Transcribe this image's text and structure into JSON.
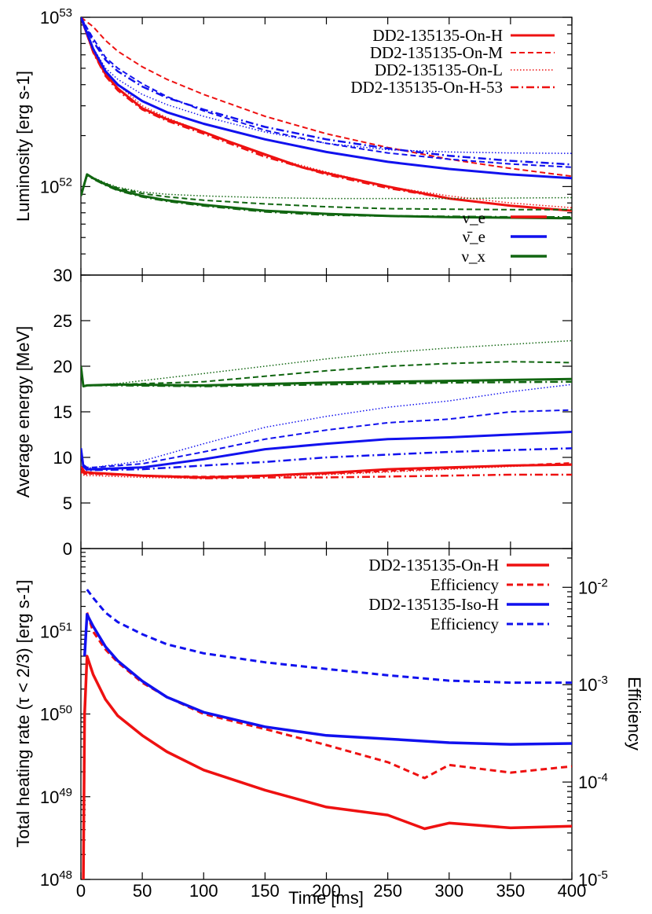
{
  "chart_data": [
    {
      "type": "line",
      "panel": "luminosity",
      "ylabel": "Luminosity [erg s-1]",
      "yscale": "log",
      "ylim": [
        3e+51,
        1e+53
      ],
      "xlim": [
        0,
        400
      ],
      "ytick_labels": [
        "10^52",
        "10^53"
      ],
      "legend_models": [
        "DD2-135135-On-H",
        "DD2-135135-On-M",
        "DD2-135135-On-L",
        "DD2-135135-On-H-53"
      ],
      "legend_species": [
        "ν_e",
        "ν̄_e",
        "ν_x"
      ],
      "series": [
        {
          "name": "DD2-135135-On-H ν_e",
          "color": "#ee1111",
          "style": "solid",
          "x": [
            0,
            10,
            20,
            30,
            50,
            70,
            100,
            120,
            150,
            180,
            200,
            250,
            300,
            350,
            400
          ],
          "values": [
            1e+53,
            6.3e+52,
            4.6e+52,
            3.8e+52,
            2.9e+52,
            2.5e+52,
            2.1e+52,
            1.85e+52,
            1.55e+52,
            1.3e+52,
            1.2e+52,
            1e+52,
            8.5e+51,
            7.7e+51,
            7.2e+51
          ]
        },
        {
          "name": "DD2-135135-On-M ν_e",
          "color": "#ee1111",
          "style": "dashed",
          "x": [
            0,
            10,
            20,
            30,
            50,
            70,
            100,
            150,
            200,
            250,
            300,
            350,
            400
          ],
          "values": [
            1e+53,
            8.8e+52,
            7.3e+52,
            6.3e+52,
            5.1e+52,
            4.3e+52,
            3.5e+52,
            2.6e+52,
            2.05e+52,
            1.7e+52,
            1.45e+52,
            1.28e+52,
            1.15e+52
          ]
        },
        {
          "name": "DD2-135135-On-L ν_e",
          "color": "#ee1111",
          "style": "dotted",
          "x": [
            0,
            10,
            20,
            30,
            50,
            70,
            100,
            150,
            200,
            250,
            300,
            350,
            400
          ],
          "values": [
            1e+53,
            6.4e+52,
            4.8e+52,
            4e+52,
            3e+52,
            2.55e+52,
            2.1e+52,
            1.52e+52,
            1.22e+52,
            1e+52,
            8.8e+51,
            8e+51,
            7.5e+51
          ]
        },
        {
          "name": "DD2-135135-On-H-53 ν_e",
          "color": "#ee1111",
          "style": "dashdot",
          "x": [
            0,
            10,
            20,
            30,
            50,
            70,
            100,
            150,
            200,
            250,
            300,
            350,
            400
          ],
          "values": [
            1e+53,
            6.2e+52,
            4.5e+52,
            3.7e+52,
            2.85e+52,
            2.45e+52,
            2.05e+52,
            1.5e+52,
            1.18e+52,
            9.8e+51,
            8.5e+51,
            7.7e+51,
            7.2e+51
          ]
        },
        {
          "name": "DD2-135135-On-H ν̄_e",
          "color": "#1111ee",
          "style": "solid",
          "x": [
            0,
            10,
            20,
            30,
            50,
            70,
            100,
            150,
            200,
            250,
            300,
            350,
            400
          ],
          "values": [
            1e+53,
            6.5e+52,
            4.8e+52,
            4e+52,
            3.2e+52,
            2.75e+52,
            2.35e+52,
            1.9e+52,
            1.6e+52,
            1.4e+52,
            1.27e+52,
            1.18e+52,
            1.12e+52
          ]
        },
        {
          "name": "DD2-135135-On-M ν̄_e",
          "color": "#1111ee",
          "style": "dashed",
          "x": [
            0,
            10,
            20,
            30,
            50,
            70,
            100,
            150,
            200,
            250,
            300,
            350,
            400
          ],
          "values": [
            1e+53,
            7.5e+52,
            5.8e+52,
            5e+52,
            4.05e+52,
            3.4e+52,
            2.8e+52,
            2.15e+52,
            1.8e+52,
            1.58e+52,
            1.45e+52,
            1.36e+52,
            1.3e+52
          ]
        },
        {
          "name": "DD2-135135-On-L ν̄_e",
          "color": "#1111ee",
          "style": "dotted",
          "x": [
            0,
            10,
            20,
            30,
            50,
            70,
            100,
            150,
            200,
            250,
            300,
            350,
            400
          ],
          "values": [
            1e+53,
            6.6e+52,
            5e+52,
            4.3e+52,
            3.5e+52,
            3.05e+52,
            2.6e+52,
            2.1e+52,
            1.8e+52,
            1.65e+52,
            1.6e+52,
            1.58e+52,
            1.57e+52
          ]
        },
        {
          "name": "DD2-135135-On-H-53 ν̄_e",
          "color": "#1111ee",
          "style": "dashdot",
          "x": [
            0,
            10,
            20,
            30,
            50,
            70,
            100,
            150,
            200,
            250,
            300,
            350,
            400
          ],
          "values": [
            1e+53,
            7.2e+52,
            5.6e+52,
            4.8e+52,
            3.9e+52,
            3.35e+52,
            2.85e+52,
            2.25e+52,
            1.9e+52,
            1.68e+52,
            1.52e+52,
            1.42e+52,
            1.35e+52
          ]
        },
        {
          "name": "DD2-135135-On-H ν_x",
          "color": "#116611",
          "style": "solid",
          "x": [
            0,
            5,
            10,
            20,
            30,
            50,
            70,
            100,
            150,
            200,
            250,
            300,
            350,
            400
          ],
          "values": [
            8.8e+51,
            1.18e+52,
            1.12e+52,
            1.03e+52,
            9.6e+51,
            8.8e+51,
            8.3e+51,
            7.8e+51,
            7.2e+51,
            6.9e+51,
            6.7e+51,
            6.6e+51,
            6.55e+51,
            6.5e+51
          ]
        },
        {
          "name": "DD2-135135-On-M ν_x",
          "color": "#116611",
          "style": "dashed",
          "x": [
            0,
            5,
            10,
            20,
            30,
            50,
            70,
            100,
            150,
            200,
            250,
            300,
            350,
            400
          ],
          "values": [
            8.8e+51,
            1.18e+52,
            1.12e+52,
            1.04e+52,
            9.8e+51,
            9.1e+51,
            8.7e+51,
            8.3e+51,
            7.9e+51,
            7.6e+51,
            7.4e+51,
            7.35e+51,
            7.3e+51,
            7.3e+51
          ]
        },
        {
          "name": "DD2-135135-On-L ν_x",
          "color": "#116611",
          "style": "dotted",
          "x": [
            0,
            5,
            10,
            20,
            30,
            50,
            70,
            100,
            150,
            200,
            250,
            300,
            350,
            400
          ],
          "values": [
            8.8e+51,
            1.18e+52,
            1.13e+52,
            1.05e+52,
            9.9e+51,
            9.3e+51,
            9e+51,
            8.8e+51,
            8.6e+51,
            8.5e+51,
            8.5e+51,
            8.5e+51,
            8.55e+51,
            8.6e+51
          ]
        },
        {
          "name": "DD2-135135-On-H-53 ν_x",
          "color": "#116611",
          "style": "dashdot",
          "x": [
            0,
            5,
            10,
            20,
            30,
            50,
            70,
            100,
            150,
            200,
            250,
            300,
            350,
            400
          ],
          "values": [
            8.8e+51,
            1.17e+52,
            1.11e+52,
            1.02e+52,
            9.5e+51,
            8.7e+51,
            8.2e+51,
            7.7e+51,
            7.1e+51,
            6.8e+51,
            6.7e+51,
            6.65e+51,
            6.6e+51,
            6.6e+51
          ]
        }
      ]
    },
    {
      "type": "line",
      "panel": "average-energy",
      "ylabel": "Average energy [MeV]",
      "yscale": "linear",
      "ylim": [
        0,
        30
      ],
      "xlim": [
        0,
        400
      ],
      "yticks": [
        0,
        5,
        10,
        15,
        20,
        25,
        30
      ],
      "series": [
        {
          "name": "DD2-135135-On-H ν_e",
          "color": "#ee1111",
          "style": "solid",
          "x": [
            0,
            3,
            10,
            50,
            100,
            150,
            200,
            250,
            300,
            350,
            400
          ],
          "values": [
            9.0,
            8.4,
            8.3,
            8.0,
            7.8,
            8.0,
            8.3,
            8.7,
            8.9,
            9.1,
            9.2
          ]
        },
        {
          "name": "DD2-135135-On-M ν_e",
          "color": "#ee1111",
          "style": "dashed",
          "x": [
            0,
            3,
            10,
            50,
            100,
            150,
            200,
            250,
            300,
            350,
            400
          ],
          "values": [
            8.5,
            8.2,
            8.2,
            8.0,
            7.9,
            8.0,
            8.2,
            8.5,
            8.8,
            9.1,
            9.4
          ]
        },
        {
          "name": "DD2-135135-On-L ν_e",
          "color": "#ee1111",
          "style": "dotted",
          "x": [
            0,
            3,
            10,
            50,
            100,
            150,
            200,
            250,
            300,
            350,
            400
          ],
          "values": [
            8.3,
            8.0,
            8.0,
            7.8,
            7.7,
            7.9,
            8.1,
            8.4,
            8.7,
            9.0,
            9.3
          ]
        },
        {
          "name": "DD2-135135-On-H-53 ν_e",
          "color": "#ee1111",
          "style": "dashdot",
          "x": [
            0,
            3,
            10,
            50,
            100,
            150,
            200,
            250,
            300,
            350,
            400
          ],
          "values": [
            8.6,
            8.2,
            8.2,
            8.0,
            7.7,
            7.8,
            7.8,
            7.9,
            8.0,
            8.1,
            8.1
          ]
        },
        {
          "name": "DD2-135135-On-H ν̄_e",
          "color": "#1111ee",
          "style": "solid",
          "x": [
            0,
            2,
            5,
            10,
            50,
            100,
            150,
            200,
            250,
            300,
            350,
            400
          ],
          "values": [
            11.0,
            9.0,
            8.7,
            8.7,
            8.9,
            9.8,
            10.9,
            11.5,
            12.0,
            12.2,
            12.5,
            12.8
          ]
        },
        {
          "name": "DD2-135135-On-M ν̄_e",
          "color": "#1111ee",
          "style": "dashed",
          "x": [
            0,
            2,
            5,
            10,
            50,
            100,
            150,
            200,
            250,
            300,
            350,
            400
          ],
          "values": [
            11.0,
            9.2,
            8.9,
            8.9,
            9.3,
            10.6,
            12.0,
            13.0,
            13.8,
            14.2,
            15.0,
            15.2
          ]
        },
        {
          "name": "DD2-135135-On-L ν̄_e",
          "color": "#1111ee",
          "style": "dotted",
          "x": [
            0,
            2,
            5,
            10,
            50,
            100,
            150,
            200,
            250,
            300,
            350,
            400
          ],
          "values": [
            11.0,
            9.0,
            8.8,
            8.9,
            9.6,
            11.5,
            13.3,
            14.5,
            15.5,
            16.2,
            17.2,
            18.0
          ]
        },
        {
          "name": "DD2-135135-On-H-53 ν̄_e",
          "color": "#1111ee",
          "style": "dashdot",
          "x": [
            0,
            2,
            5,
            10,
            50,
            100,
            150,
            200,
            250,
            300,
            350,
            400
          ],
          "values": [
            11.0,
            9.0,
            8.6,
            8.6,
            8.7,
            9.1,
            9.5,
            10.0,
            10.3,
            10.6,
            10.8,
            11.0
          ]
        },
        {
          "name": "DD2-135135-On-H ν_x",
          "color": "#116611",
          "style": "solid",
          "x": [
            0,
            2,
            5,
            30,
            100,
            200,
            300,
            400
          ],
          "values": [
            20.0,
            17.8,
            17.9,
            18.0,
            17.9,
            18.2,
            18.4,
            18.6
          ]
        },
        {
          "name": "DD2-135135-On-M ν_x",
          "color": "#116611",
          "style": "dashed",
          "x": [
            0,
            2,
            5,
            30,
            100,
            200,
            250,
            300,
            350,
            400
          ],
          "values": [
            20.0,
            17.8,
            17.9,
            18.0,
            18.3,
            19.5,
            20.0,
            20.3,
            20.5,
            20.4
          ]
        },
        {
          "name": "DD2-135135-On-L ν_x",
          "color": "#116611",
          "style": "dotted",
          "x": [
            0,
            2,
            5,
            30,
            100,
            200,
            250,
            300,
            350,
            400
          ],
          "values": [
            20.0,
            17.8,
            17.9,
            18.1,
            19.2,
            20.8,
            21.5,
            22.0,
            22.4,
            22.8
          ]
        },
        {
          "name": "DD2-135135-On-H-53 ν_x",
          "color": "#116611",
          "style": "dashdot",
          "x": [
            0,
            2,
            5,
            30,
            100,
            200,
            300,
            400
          ],
          "values": [
            20.0,
            17.8,
            17.9,
            17.9,
            17.8,
            18.0,
            18.2,
            18.3
          ]
        }
      ]
    },
    {
      "type": "line",
      "panel": "heating-rate",
      "ylabel": "Total heating rate (τ < 2/3) [erg s-1]",
      "y2label": "Efficiency",
      "xlabel": "Time [ms]",
      "yscale": "log",
      "ylim": [
        1e+48,
        1e+52
      ],
      "y2scale": "log",
      "y2lim": [
        1e-05,
        0.025
      ],
      "xlim": [
        0,
        400
      ],
      "xticks": [
        0,
        50,
        100,
        150,
        200,
        250,
        300,
        350,
        400
      ],
      "ytick_labels": [
        "10^48",
        "10^49",
        "10^50",
        "10^51"
      ],
      "y2tick_labels": [
        "10^-5",
        "10^-4",
        "10^-3",
        "10^-2"
      ],
      "legend": [
        "DD2-135135-On-H",
        "Efficiency",
        "DD2-135135-Iso-H",
        "Efficiency"
      ],
      "series": [
        {
          "name": "DD2-135135-On-H",
          "axis": "left",
          "color": "#ee1111",
          "style": "solid",
          "x": [
            2,
            3,
            5,
            10,
            20,
            30,
            50,
            70,
            100,
            150,
            200,
            250,
            280,
            300,
            350,
            400
          ],
          "values": [
            1e+48,
            1e+50,
            5e+50,
            3e+50,
            1.5e+50,
            9.5e+49,
            5.5e+49,
            3.5e+49,
            2.1e+49,
            1.2e+49,
            7.5e+48,
            6e+48,
            4.1e+48,
            4.8e+48,
            4.2e+48,
            4.4e+48
          ]
        },
        {
          "name": "Efficiency (On-H)",
          "axis": "right",
          "color": "#ee1111",
          "style": "dashed",
          "x": [
            5,
            10,
            20,
            30,
            50,
            70,
            100,
            150,
            200,
            250,
            280,
            300,
            350,
            400
          ],
          "values": [
            0.0055,
            0.0035,
            0.0023,
            0.0017,
            0.00105,
            0.00075,
            0.0005,
            0.00035,
            0.00024,
            0.00016,
            0.00011,
            0.00015,
            0.000125,
            0.000145
          ]
        },
        {
          "name": "DD2-135135-Iso-H",
          "axis": "left",
          "color": "#1111ee",
          "style": "solid",
          "x": [
            3,
            5,
            10,
            20,
            30,
            50,
            70,
            100,
            150,
            200,
            250,
            300,
            350,
            400
          ],
          "values": [
            5e+50,
            1.6e+51,
            1.15e+51,
            6.5e+50,
            4.4e+50,
            2.5e+50,
            1.6e+50,
            1.05e+50,
            7e+49,
            5.5e+49,
            5e+49,
            4.5e+49,
            4.3e+49,
            4.4e+49
          ]
        },
        {
          "name": "Efficiency (Iso-H)",
          "axis": "right",
          "color": "#1111ee",
          "style": "dashed",
          "x": [
            5,
            10,
            20,
            30,
            50,
            70,
            100,
            150,
            200,
            250,
            300,
            350,
            400
          ],
          "values": [
            0.0095,
            0.0078,
            0.0055,
            0.0044,
            0.0033,
            0.0026,
            0.0021,
            0.0017,
            0.00145,
            0.00125,
            0.0011,
            0.00105,
            0.00105
          ]
        }
      ]
    }
  ]
}
